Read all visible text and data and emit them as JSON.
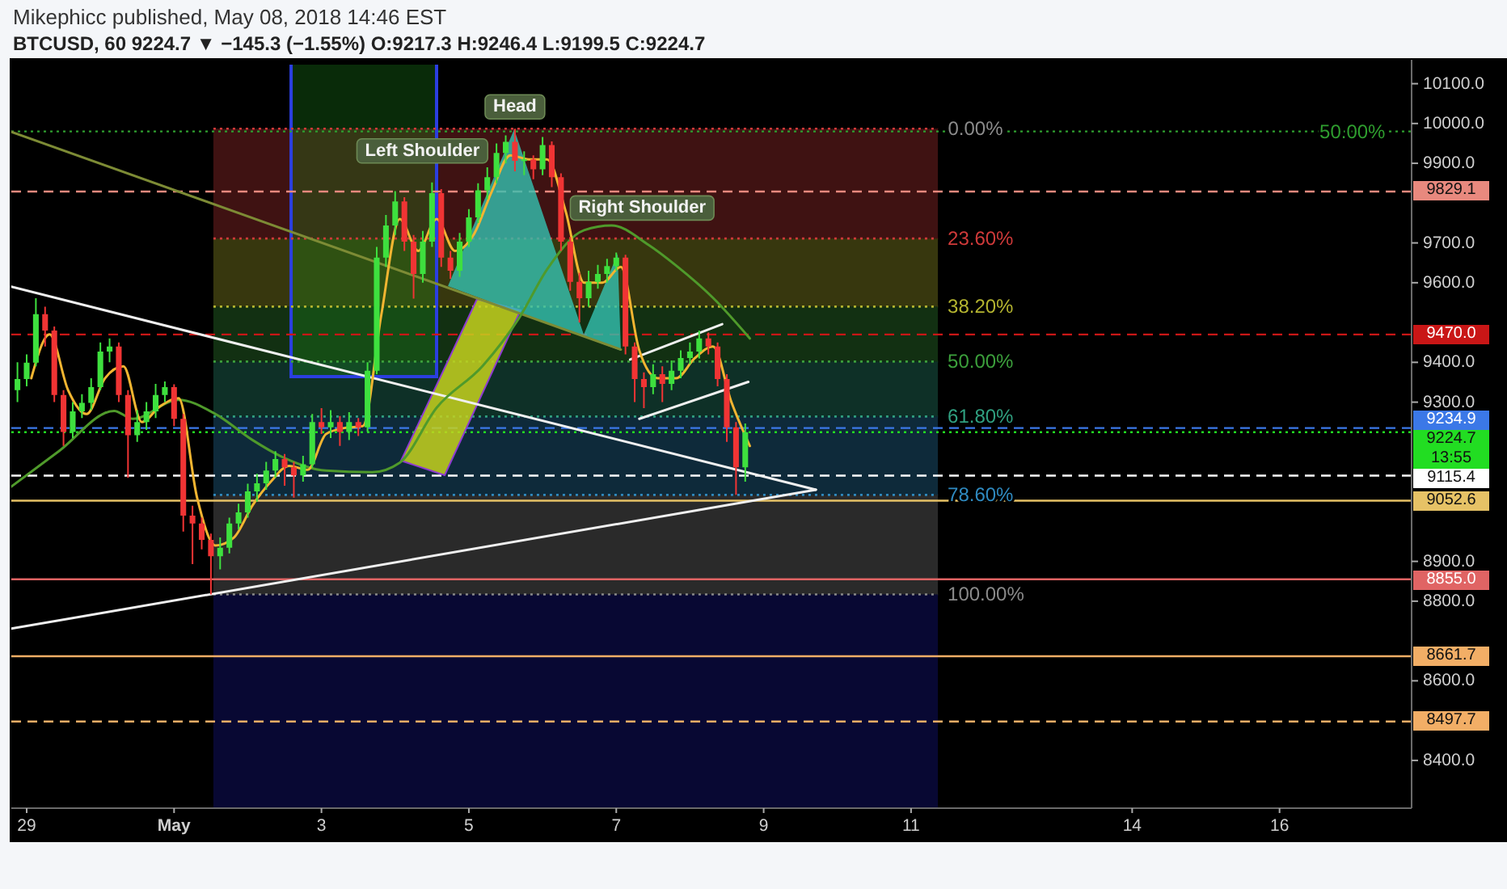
{
  "chart_data": {
    "type": "candlestick",
    "title": "Mikephicc published, May 08, 2018 14:46 EST",
    "subtitle": "BTCUSD, 60 9224.7 ▼ −145.3 (−1.55%) O:9217.3 H:9246.4 L:9199.5 C:9224.7",
    "xlim": [
      "2018-04-28T19:00",
      "2018-05-17T19:00"
    ],
    "xticks": [
      {
        "value": "2018-04-29",
        "label": "29"
      },
      {
        "value": "2018-05-01",
        "label": "May"
      },
      {
        "value": "2018-05-03",
        "label": "3"
      },
      {
        "value": "2018-05-05",
        "label": "5"
      },
      {
        "value": "2018-05-07",
        "label": "7"
      },
      {
        "value": "2018-05-09",
        "label": "9"
      },
      {
        "value": "2018-05-11",
        "label": "11"
      },
      {
        "value": "2018-05-14",
        "label": "14"
      },
      {
        "value": "2018-05-16",
        "label": "16"
      }
    ],
    "ylim": [
      8280,
      10160
    ],
    "yticks": [
      {
        "value": 8400,
        "label": "8400.0"
      },
      {
        "value": 8600,
        "label": "8600.0"
      },
      {
        "value": 8800,
        "label": "8800.0"
      },
      {
        "value": 8900,
        "label": "8900.0"
      },
      {
        "value": 9300,
        "label": "9300.0"
      },
      {
        "value": 9400,
        "label": "9400.0"
      },
      {
        "value": 9600,
        "label": "9600.0"
      },
      {
        "value": 9700,
        "label": "9700.0"
      },
      {
        "value": 9900,
        "label": "9900.0"
      },
      {
        "value": 10000,
        "label": "10000.0"
      },
      {
        "value": 10100,
        "label": "10100.0"
      }
    ],
    "x": [
      "2018-04-28T21:00",
      "2018-04-29T00:00",
      "2018-04-29T03:00",
      "2018-04-29T06:00",
      "2018-04-29T09:00",
      "2018-04-29T12:00",
      "2018-04-29T15:00",
      "2018-04-29T18:00",
      "2018-04-29T21:00",
      "2018-04-30T00:00",
      "2018-04-30T03:00",
      "2018-04-30T06:00",
      "2018-04-30T09:00",
      "2018-04-30T12:00",
      "2018-04-30T15:00",
      "2018-04-30T18:00",
      "2018-04-30T21:00",
      "2018-05-01T00:00",
      "2018-05-01T03:00",
      "2018-05-01T06:00",
      "2018-05-01T09:00",
      "2018-05-01T12:00",
      "2018-05-01T15:00",
      "2018-05-01T18:00",
      "2018-05-01T21:00",
      "2018-05-02T00:00",
      "2018-05-02T03:00",
      "2018-05-02T06:00",
      "2018-05-02T09:00",
      "2018-05-02T12:00",
      "2018-05-02T15:00",
      "2018-05-02T18:00",
      "2018-05-02T21:00",
      "2018-05-03T00:00",
      "2018-05-03T03:00",
      "2018-05-03T06:00",
      "2018-05-03T09:00",
      "2018-05-03T12:00",
      "2018-05-03T15:00",
      "2018-05-03T18:00",
      "2018-05-03T21:00",
      "2018-05-04T00:00",
      "2018-05-04T03:00",
      "2018-05-04T06:00",
      "2018-05-04T09:00",
      "2018-05-04T12:00",
      "2018-05-04T15:00",
      "2018-05-04T18:00",
      "2018-05-04T21:00",
      "2018-05-05T00:00",
      "2018-05-05T03:00",
      "2018-05-05T06:00",
      "2018-05-05T09:00",
      "2018-05-05T12:00",
      "2018-05-05T15:00",
      "2018-05-05T18:00",
      "2018-05-05T21:00",
      "2018-05-06T00:00",
      "2018-05-06T03:00",
      "2018-05-06T06:00",
      "2018-05-06T09:00",
      "2018-05-06T12:00",
      "2018-05-06T15:00",
      "2018-05-06T18:00",
      "2018-05-06T21:00",
      "2018-05-07T00:00",
      "2018-05-07T03:00",
      "2018-05-07T06:00",
      "2018-05-07T09:00",
      "2018-05-07T12:00",
      "2018-05-07T15:00",
      "2018-05-07T18:00",
      "2018-05-07T21:00",
      "2018-05-08T00:00",
      "2018-05-08T03:00",
      "2018-05-08T06:00",
      "2018-05-08T09:00",
      "2018-05-08T12:00",
      "2018-05-08T15:00",
      "2018-05-08T18:00"
    ],
    "ohlc": [
      [
        9330,
        9400,
        9300,
        9358
      ],
      [
        9358,
        9420,
        9340,
        9399
      ],
      [
        9399,
        9561,
        9390,
        9521
      ],
      [
        9521,
        9540,
        9440,
        9480
      ],
      [
        9480,
        9490,
        9300,
        9318
      ],
      [
        9318,
        9330,
        9190,
        9225
      ],
      [
        9225,
        9300,
        9210,
        9277
      ],
      [
        9277,
        9320,
        9260,
        9298
      ],
      [
        9298,
        9360,
        9280,
        9338
      ],
      [
        9338,
        9450,
        9330,
        9427
      ],
      [
        9427,
        9460,
        9400,
        9440
      ],
      [
        9440,
        9450,
        9300,
        9318
      ],
      [
        9318,
        9330,
        9110,
        9217
      ],
      [
        9217,
        9280,
        9200,
        9250
      ],
      [
        9250,
        9300,
        9230,
        9277
      ],
      [
        9277,
        9346,
        9260,
        9318
      ],
      [
        9318,
        9352,
        9300,
        9338
      ],
      [
        9338,
        9345,
        9240,
        9258
      ],
      [
        9258,
        9270,
        8975,
        9015
      ],
      [
        9015,
        9040,
        8893,
        8995
      ],
      [
        8995,
        9010,
        8930,
        8954
      ],
      [
        8954,
        8970,
        8817,
        8913
      ],
      [
        8913,
        8960,
        8880,
        8934
      ],
      [
        8934,
        9010,
        8920,
        8995
      ],
      [
        8995,
        9045,
        8980,
        9023
      ],
      [
        9023,
        9095,
        9010,
        9076
      ],
      [
        9076,
        9120,
        9050,
        9096
      ],
      [
        9096,
        9150,
        9080,
        9128
      ],
      [
        9128,
        9177,
        9110,
        9157
      ],
      [
        9157,
        9170,
        9090,
        9136
      ],
      [
        9136,
        9150,
        9060,
        9116
      ],
      [
        9116,
        9165,
        9100,
        9144
      ],
      [
        9144,
        9270,
        9135,
        9250
      ],
      [
        9250,
        9285,
        9220,
        9237
      ],
      [
        9237,
        9280,
        9210,
        9250
      ],
      [
        9250,
        9265,
        9190,
        9225
      ],
      [
        9225,
        9275,
        9205,
        9250
      ],
      [
        9250,
        9260,
        9215,
        9237
      ],
      [
        9237,
        9400,
        9225,
        9379
      ],
      [
        9379,
        9690,
        9370,
        9663
      ],
      [
        9663,
        9770,
        9640,
        9744
      ],
      [
        9744,
        9830,
        9720,
        9804
      ],
      [
        9804,
        9815,
        9680,
        9703
      ],
      [
        9703,
        9720,
        9560,
        9622
      ],
      [
        9622,
        9730,
        9600,
        9703
      ],
      [
        9703,
        9852,
        9690,
        9825
      ],
      [
        9825,
        9835,
        9640,
        9663
      ],
      [
        9663,
        9680,
        9610,
        9630
      ],
      [
        9630,
        9725,
        9615,
        9703
      ],
      [
        9703,
        9785,
        9690,
        9764
      ],
      [
        9764,
        9850,
        9750,
        9832
      ],
      [
        9832,
        9890,
        9810,
        9865
      ],
      [
        9865,
        9950,
        9850,
        9926
      ],
      [
        9926,
        9970,
        9900,
        9954
      ],
      [
        9954,
        9987,
        9880,
        9906
      ],
      [
        9906,
        9930,
        9870,
        9910
      ],
      [
        9910,
        9920,
        9860,
        9885
      ],
      [
        9885,
        9966,
        9870,
        9946
      ],
      [
        9946,
        9955,
        9840,
        9865
      ],
      [
        9865,
        9875,
        9680,
        9703
      ],
      [
        9703,
        9715,
        9580,
        9602
      ],
      [
        9602,
        9625,
        9500,
        9561
      ],
      [
        9561,
        9630,
        9540,
        9602
      ],
      [
        9602,
        9645,
        9585,
        9622
      ],
      [
        9622,
        9660,
        9600,
        9642
      ],
      [
        9642,
        9676,
        9630,
        9663
      ],
      [
        9663,
        9670,
        9420,
        9440
      ],
      [
        9440,
        9450,
        9300,
        9358
      ],
      [
        9358,
        9375,
        9285,
        9338
      ],
      [
        9338,
        9395,
        9320,
        9370
      ],
      [
        9370,
        9390,
        9300,
        9346
      ],
      [
        9346,
        9405,
        9330,
        9379
      ],
      [
        9379,
        9430,
        9360,
        9411
      ],
      [
        9411,
        9450,
        9395,
        9427
      ],
      [
        9427,
        9480,
        9410,
        9460
      ],
      [
        9460,
        9475,
        9420,
        9440
      ],
      [
        9440,
        9450,
        9340,
        9358
      ],
      [
        9358,
        9370,
        9200,
        9237
      ],
      [
        9237,
        9250,
        9067,
        9136
      ],
      [
        9136,
        9246.4,
        9100,
        9224.7
      ]
    ],
    "series": [
      {
        "type": "line",
        "color": "#7d8b35",
        "x": [
          "2018-04-28T19:00",
          "2018-05-07T01:30"
        ],
        "values": [
          9979,
          9432
        ]
      },
      {
        "type": "line",
        "color": "#f0f0f0",
        "x": [
          "2018-04-28T19:00",
          "2018-05-09T17:00"
        ],
        "values": [
          9590,
          9080
        ]
      },
      {
        "type": "line",
        "color": "#f0f0f0",
        "x": [
          "2018-04-28T19:00",
          "2018-05-09T17:00"
        ],
        "values": [
          8731,
          9080
        ]
      },
      {
        "type": "line",
        "color": "#f0f0f0",
        "x": [
          "2018-05-07T04:30",
          "2018-05-08T10:30"
        ],
        "values": [
          9407,
          9496
        ]
      },
      {
        "type": "line",
        "color": "#f0f0f0",
        "x": [
          "2018-05-07T07:30",
          "2018-05-08T19:00"
        ],
        "values": [
          9258,
          9351
        ]
      },
      {
        "type": "line",
        "color": "#4f9a2b",
        "x": [
          "2018-04-28T19:00",
          "2018-04-29T10:30",
          "2018-04-30T04:30",
          "2018-04-30T10:30",
          "2018-05-01T01:30",
          "2018-05-01T13:30",
          "2018-05-02T01:30",
          "2018-05-02T10:30",
          "2018-05-03T01:30",
          "2018-05-03T16:30",
          "2018-05-04T01:30",
          "2018-05-04T13:30",
          "2018-05-05T04:30",
          "2018-05-05T16:30",
          "2018-05-06T01:30",
          "2018-05-06T13:30",
          "2018-05-06T22:30",
          "2018-05-07T10:30",
          "2018-05-07T19:30",
          "2018-05-08T07:30",
          "2018-05-08T19:30"
        ],
        "values": [
          9088,
          9177,
          9278,
          9258,
          9306,
          9270,
          9205,
          9165,
          9128,
          9124,
          9148,
          9286,
          9391,
          9513,
          9634,
          9732,
          9744,
          9695,
          9643,
          9562,
          9460
        ]
      },
      {
        "type": "line",
        "color": "#f2b531",
        "x": [
          "2018-04-29T01:30",
          "2018-04-29T07:30",
          "2018-04-29T13:30",
          "2018-04-29T19:30",
          "2018-04-30T01:30",
          "2018-04-30T07:30",
          "2018-04-30T13:30",
          "2018-04-30T19:30",
          "2018-05-01T01:30",
          "2018-05-01T07:30",
          "2018-05-01T13:30",
          "2018-05-01T19:30",
          "2018-05-02T01:30",
          "2018-05-02T07:30",
          "2018-05-02T13:30",
          "2018-05-02T19:30",
          "2018-05-03T01:30",
          "2018-05-03T07:30",
          "2018-05-03T13:30",
          "2018-05-03T19:30",
          "2018-05-04T01:30",
          "2018-05-04T07:30",
          "2018-05-04T13:30",
          "2018-05-04T19:30",
          "2018-05-05T01:30",
          "2018-05-05T07:30",
          "2018-05-05T13:30",
          "2018-05-05T19:30",
          "2018-05-06T01:30",
          "2018-05-06T07:30",
          "2018-05-06T13:30",
          "2018-05-06T19:30",
          "2018-05-07T01:30",
          "2018-05-07T07:30",
          "2018-05-07T13:30",
          "2018-05-07T19:30",
          "2018-05-08T01:30",
          "2018-05-08T07:30",
          "2018-05-08T13:30",
          "2018-05-08T19:30"
        ],
        "values": [
          9360,
          9470,
          9330,
          9270,
          9360,
          9390,
          9250,
          9290,
          9310,
          9060,
          8940,
          8960,
          9040,
          9100,
          9140,
          9130,
          9220,
          9235,
          9240,
          9520,
          9760,
          9680,
          9760,
          9680,
          9720,
          9830,
          9920,
          9910,
          9910,
          9780,
          9600,
          9600,
          9640,
          9430,
          9360,
          9360,
          9410,
          9440,
          9300,
          9190
        ]
      }
    ],
    "bands": [
      {
        "axis": "y",
        "from": 9987,
        "to": 9711,
        "label": "23.60%",
        "color": "#d03a3a"
      },
      {
        "axis": "y",
        "from": 9711,
        "to": 9540,
        "label": "38.20%",
        "color": "#b5b530"
      },
      {
        "axis": "y",
        "from": 9540,
        "to": 9402,
        "label": "50.00%",
        "color": "#3ca03c"
      },
      {
        "axis": "y",
        "from": 9402,
        "to": 9264,
        "label": "61.80%",
        "color": "#30a080"
      },
      {
        "axis": "y",
        "from": 9264,
        "to": 9067,
        "label": "78.60%",
        "color": "#2f8ac0"
      },
      {
        "axis": "y",
        "from": 9067,
        "to": 8817,
        "label": "100.00%",
        "color": "#8a8a8a"
      },
      {
        "axis": "y",
        "from": 8817,
        "to": 8280,
        "color": "#1c1ca8"
      }
    ],
    "ref_lines": [
      {
        "axis": "y",
        "value": 9980,
        "color": "#2f9e2f",
        "line_style": "dotted"
      },
      {
        "axis": "y",
        "value": 9829.1,
        "label": "9829.1",
        "color": "#e8897e",
        "line_style": "dashed"
      },
      {
        "axis": "y",
        "value": 9470,
        "label": "9470.0",
        "color": "#c91616",
        "line_style": "dashed"
      },
      {
        "axis": "y",
        "value": 9234.9,
        "label": "9234.9",
        "color": "#3b78e7",
        "line_style": "dashed"
      },
      {
        "axis": "y",
        "value": 9224.7,
        "label": "9224.7",
        "color": "#22dd22",
        "line_style": "dotted"
      },
      {
        "axis": "y",
        "value": 9115.4,
        "label": "9115.4",
        "color": "#ffffff",
        "line_style": "dashed"
      },
      {
        "axis": "y",
        "value": 9052.6,
        "label": "9052.6",
        "color": "#e6c266",
        "line_style": "solid"
      },
      {
        "axis": "y",
        "value": 8855,
        "label": "8855.0",
        "color": "#e06464",
        "line_style": "solid"
      },
      {
        "axis": "y",
        "value": 8661.7,
        "label": "8661.7",
        "color": "#f2ae66",
        "line_style": "solid"
      },
      {
        "axis": "y",
        "value": 8497.7,
        "label": "8497.7",
        "color": "#f2ae66",
        "line_style": "dashed"
      }
    ],
    "annotations": [
      {
        "text": "Left Shoulder",
        "x": "2018-05-04T12:00",
        "y": 9852
      },
      {
        "text": "Head",
        "x": "2018-05-05T15:00",
        "y": 9987
      },
      {
        "text": "Right Shoulder",
        "x": "2018-05-07T00:00",
        "y": 9676
      },
      {
        "text": "0.00%",
        "x": "2018-05-11T12:00",
        "y": 9987
      },
      {
        "text": "50.00%",
        "x": "2018-05-16T13:00",
        "y": 9980
      },
      "13:55"
    ]
  }
}
